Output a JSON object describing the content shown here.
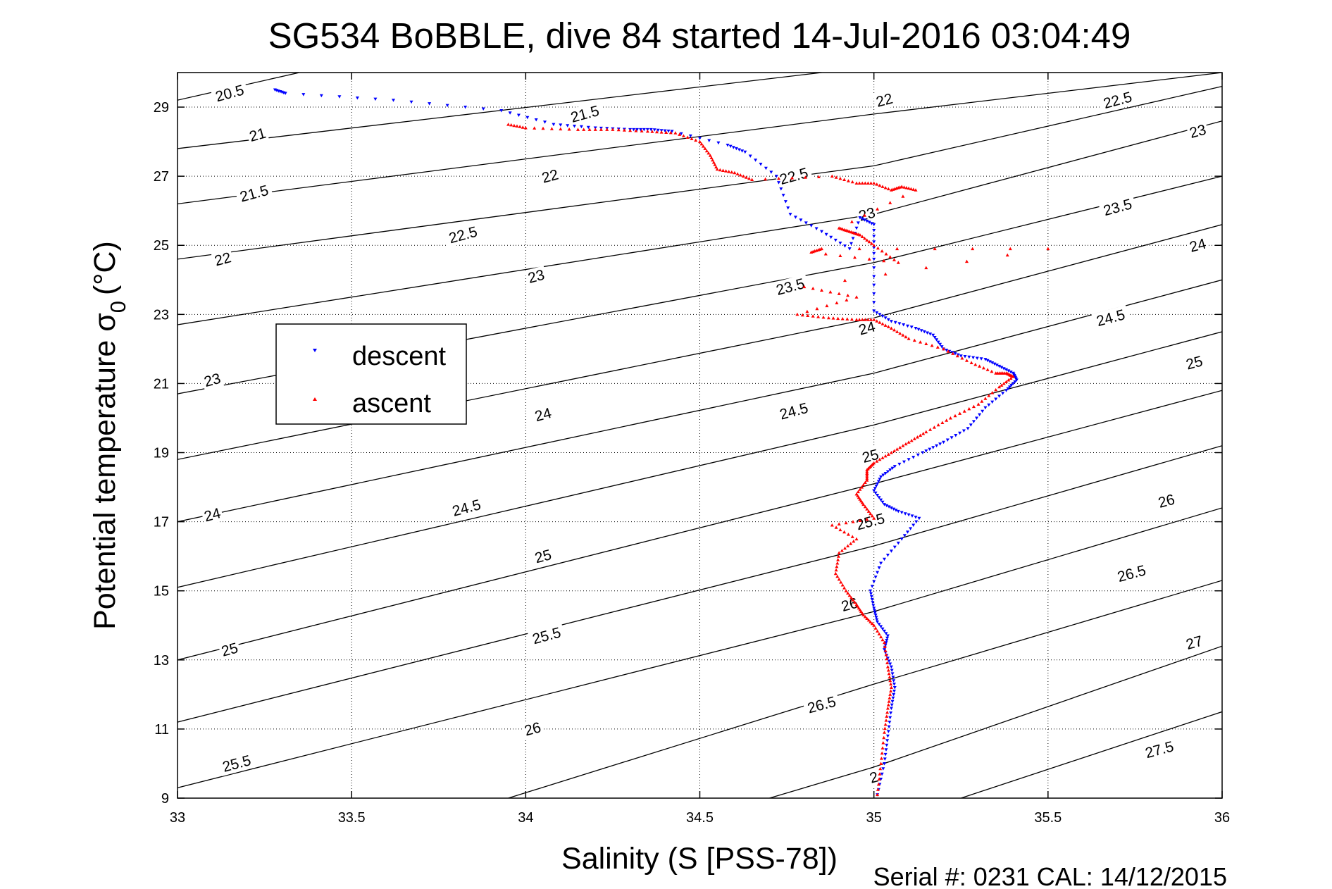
{
  "chart_data": {
    "type": "scatter",
    "title": "SG534 BoBBLE, dive 84 started 14-Jul-2016 03:04:49",
    "xlabel": "Salinity (S [PSS-78])",
    "ylabel_main": "Potential temperature σ",
    "ylabel_sub": "0",
    "ylabel_unit": "(°C)",
    "footer": "Serial #: 0231  CAL: 14/12/2015",
    "xlim": [
      33,
      36
    ],
    "ylim": [
      9,
      30
    ],
    "xticks": [
      33,
      33.5,
      34,
      34.5,
      35,
      35.5,
      36
    ],
    "xtick_labels": [
      "33",
      "33.5",
      "34",
      "34.5",
      "35",
      "35.5",
      "36"
    ],
    "yticks": [
      9,
      11,
      13,
      15,
      17,
      19,
      21,
      23,
      25,
      27,
      29
    ],
    "ytick_labels": [
      "9",
      "11",
      "13",
      "15",
      "17",
      "19",
      "21",
      "23",
      "25",
      "27",
      "29"
    ],
    "grid": true,
    "legend_position": "middle-left",
    "density_contours": [
      {
        "label": "20.5",
        "x": [
          33,
          33.35
        ],
        "y": [
          29.2,
          30
        ]
      },
      {
        "label": "21",
        "x": [
          33,
          34.85
        ],
        "y": [
          27.8,
          30
        ]
      },
      {
        "label": "21.5",
        "x": [
          33,
          35.0,
          36
        ],
        "y": [
          26.2,
          28.8,
          30
        ]
      },
      {
        "label": "22",
        "x": [
          33,
          35.0,
          36
        ],
        "y": [
          24.6,
          27.3,
          29.6
        ]
      },
      {
        "label": "22.5",
        "x": [
          33,
          35.0,
          36
        ],
        "y": [
          22.7,
          25.9,
          28.6
        ]
      },
      {
        "label": "23",
        "x": [
          33,
          35.0,
          36
        ],
        "y": [
          20.7,
          24.5,
          27.0
        ]
      },
      {
        "label": "23.5",
        "x": [
          33,
          35.0,
          36
        ],
        "y": [
          18.8,
          22.9,
          25.6
        ]
      },
      {
        "label": "24",
        "x": [
          33,
          35.0,
          36
        ],
        "y": [
          17.0,
          21.3,
          24.0
        ]
      },
      {
        "label": "24.5",
        "x": [
          33,
          35.0,
          36
        ],
        "y": [
          15.1,
          19.8,
          22.5
        ]
      },
      {
        "label": "25",
        "x": [
          33,
          35.0,
          36
        ],
        "y": [
          13.0,
          18.1,
          20.8
        ]
      },
      {
        "label": "25.5",
        "x": [
          33,
          35.0,
          36
        ],
        "y": [
          11.2,
          16.3,
          19.2
        ]
      },
      {
        "label": "26",
        "x": [
          33,
          35.0,
          36
        ],
        "y": [
          9.3,
          14.4,
          17.4
        ]
      },
      {
        "label": "26.5",
        "x": [
          33.95,
          35.0,
          36
        ],
        "y": [
          9.0,
          12.3,
          15.3
        ]
      },
      {
        "label": "27",
        "x": [
          34.7,
          35.0,
          36
        ],
        "y": [
          9.0,
          9.9,
          13.4
        ]
      },
      {
        "label": "27.5",
        "x": [
          35.25,
          36
        ],
        "y": [
          9.0,
          11.5
        ]
      }
    ],
    "contour_labels": [
      {
        "text": "20.5",
        "x": 33.15,
        "y": 29.4
      },
      {
        "text": "21",
        "x": 33.23,
        "y": 28.2
      },
      {
        "text": "21.5",
        "x": 33.22,
        "y": 26.5
      },
      {
        "text": "22",
        "x": 33.13,
        "y": 24.6
      },
      {
        "text": "23",
        "x": 33.1,
        "y": 21.1
      },
      {
        "text": "24",
        "x": 33.1,
        "y": 17.2
      },
      {
        "text": "25",
        "x": 33.15,
        "y": 13.3
      },
      {
        "text": "25.5",
        "x": 33.17,
        "y": 10.0
      },
      {
        "text": "21.5",
        "x": 34.17,
        "y": 28.8
      },
      {
        "text": "22",
        "x": 34.07,
        "y": 27.0
      },
      {
        "text": "22.5",
        "x": 33.82,
        "y": 25.3
      },
      {
        "text": "23",
        "x": 34.03,
        "y": 24.1
      },
      {
        "text": "24",
        "x": 34.05,
        "y": 20.1
      },
      {
        "text": "24.5",
        "x": 33.83,
        "y": 17.4
      },
      {
        "text": "25",
        "x": 34.05,
        "y": 16.0
      },
      {
        "text": "25.5",
        "x": 34.06,
        "y": 13.7
      },
      {
        "text": "26",
        "x": 34.02,
        "y": 11.0
      },
      {
        "text": "22",
        "x": 35.03,
        "y": 29.2
      },
      {
        "text": "22.5",
        "x": 34.77,
        "y": 27.0
      },
      {
        "text": "23",
        "x": 34.98,
        "y": 25.9
      },
      {
        "text": "23.5",
        "x": 34.76,
        "y": 23.8
      },
      {
        "text": "24",
        "x": 34.98,
        "y": 22.6
      },
      {
        "text": "24.5",
        "x": 34.77,
        "y": 20.2
      },
      {
        "text": "25",
        "x": 34.99,
        "y": 18.9
      },
      {
        "text": "25.5",
        "x": 34.99,
        "y": 17.0
      },
      {
        "text": "26",
        "x": 34.93,
        "y": 14.6
      },
      {
        "text": "26.5",
        "x": 34.85,
        "y": 11.7
      },
      {
        "text": "2",
        "x": 35.0,
        "y": 9.6
      },
      {
        "text": "22.5",
        "x": 35.7,
        "y": 29.2
      },
      {
        "text": "23",
        "x": 35.93,
        "y": 28.3
      },
      {
        "text": "23.5",
        "x": 35.7,
        "y": 26.1
      },
      {
        "text": "24",
        "x": 35.93,
        "y": 25.0
      },
      {
        "text": "24.5",
        "x": 35.68,
        "y": 22.9
      },
      {
        "text": "25",
        "x": 35.92,
        "y": 21.6
      },
      {
        "text": "26",
        "x": 35.84,
        "y": 17.6
      },
      {
        "text": "26.5",
        "x": 35.74,
        "y": 15.5
      },
      {
        "text": "27",
        "x": 35.92,
        "y": 13.5
      },
      {
        "text": "27.5",
        "x": 35.82,
        "y": 10.4
      }
    ],
    "series": [
      {
        "name": "descent",
        "color": "#0000ff",
        "marker": "triangle-down",
        "x": [
          33.28,
          33.31,
          33.62,
          33.93,
          34.08,
          34.2,
          34.3,
          34.36,
          34.42,
          34.58,
          34.63,
          34.72,
          34.76,
          34.85,
          34.93,
          34.96,
          35.0,
          35.0,
          35.0,
          35.05,
          35.12,
          35.17,
          35.2,
          35.25,
          35.32,
          35.36,
          35.4,
          35.41,
          35.38,
          35.32,
          35.27,
          35.2,
          35.14,
          35.06,
          35.02,
          35.0,
          35.03,
          35.07,
          35.13,
          35.08,
          35.02,
          34.99,
          35.0,
          35.01,
          35.04,
          35.03,
          35.05,
          35.06,
          35.05,
          35.04,
          35.03,
          35.01
        ],
        "y": [
          29.5,
          29.4,
          29.2,
          28.9,
          28.5,
          28.4,
          28.35,
          28.35,
          28.3,
          27.9,
          27.7,
          27.0,
          25.9,
          25.4,
          24.9,
          25.8,
          25.6,
          24.6,
          23.1,
          22.8,
          22.6,
          22.4,
          22.0,
          21.8,
          21.7,
          21.5,
          21.3,
          21.1,
          20.8,
          20.3,
          19.7,
          19.3,
          19.0,
          18.6,
          18.3,
          17.9,
          17.5,
          17.3,
          17.1,
          16.5,
          15.8,
          15.0,
          14.5,
          14.1,
          13.7,
          13.3,
          12.8,
          12.2,
          11.6,
          10.8,
          10.0,
          9.1
        ]
      },
      {
        "name": "ascent",
        "color": "#ff0000",
        "marker": "triangle-up",
        "x": [
          33.95,
          34.0,
          34.15,
          34.25,
          34.35,
          34.43,
          34.5,
          34.53,
          34.55,
          34.6,
          34.65,
          34.88,
          34.95,
          35.0,
          35.05,
          35.08,
          35.12,
          34.9,
          34.93,
          34.96,
          35.0,
          35.07,
          34.82,
          34.85,
          35.5,
          34.8,
          34.95,
          34.78,
          34.87,
          34.95,
          35.0,
          35.05,
          35.1,
          35.2,
          35.28,
          35.35,
          35.38,
          35.4,
          35.36,
          35.3,
          35.22,
          35.15,
          35.1,
          35.05,
          35.0,
          34.98,
          34.98,
          34.95,
          34.97,
          35.0,
          34.88,
          34.95,
          34.9,
          34.89,
          34.92,
          34.95,
          34.97,
          35.0,
          35.03,
          35.04,
          35.05,
          35.04,
          35.03,
          35.02,
          35.01
        ],
        "y": [
          28.5,
          28.4,
          28.35,
          28.35,
          28.3,
          28.25,
          28.0,
          27.6,
          27.2,
          27.1,
          26.9,
          27.0,
          26.8,
          26.8,
          26.6,
          26.7,
          26.6,
          25.5,
          25.4,
          25.3,
          25.0,
          24.5,
          24.8,
          24.9,
          24.9,
          23.8,
          23.5,
          23.0,
          22.9,
          22.85,
          22.85,
          22.6,
          22.3,
          22.0,
          21.6,
          21.3,
          21.3,
          21.2,
          20.9,
          20.4,
          20.0,
          19.6,
          19.3,
          19.0,
          18.7,
          18.5,
          18.2,
          17.8,
          17.5,
          17.1,
          16.9,
          16.5,
          16.1,
          15.5,
          15.0,
          14.6,
          14.3,
          14.0,
          13.5,
          12.8,
          12.2,
          11.6,
          10.9,
          10.0,
          9.1
        ]
      }
    ]
  }
}
